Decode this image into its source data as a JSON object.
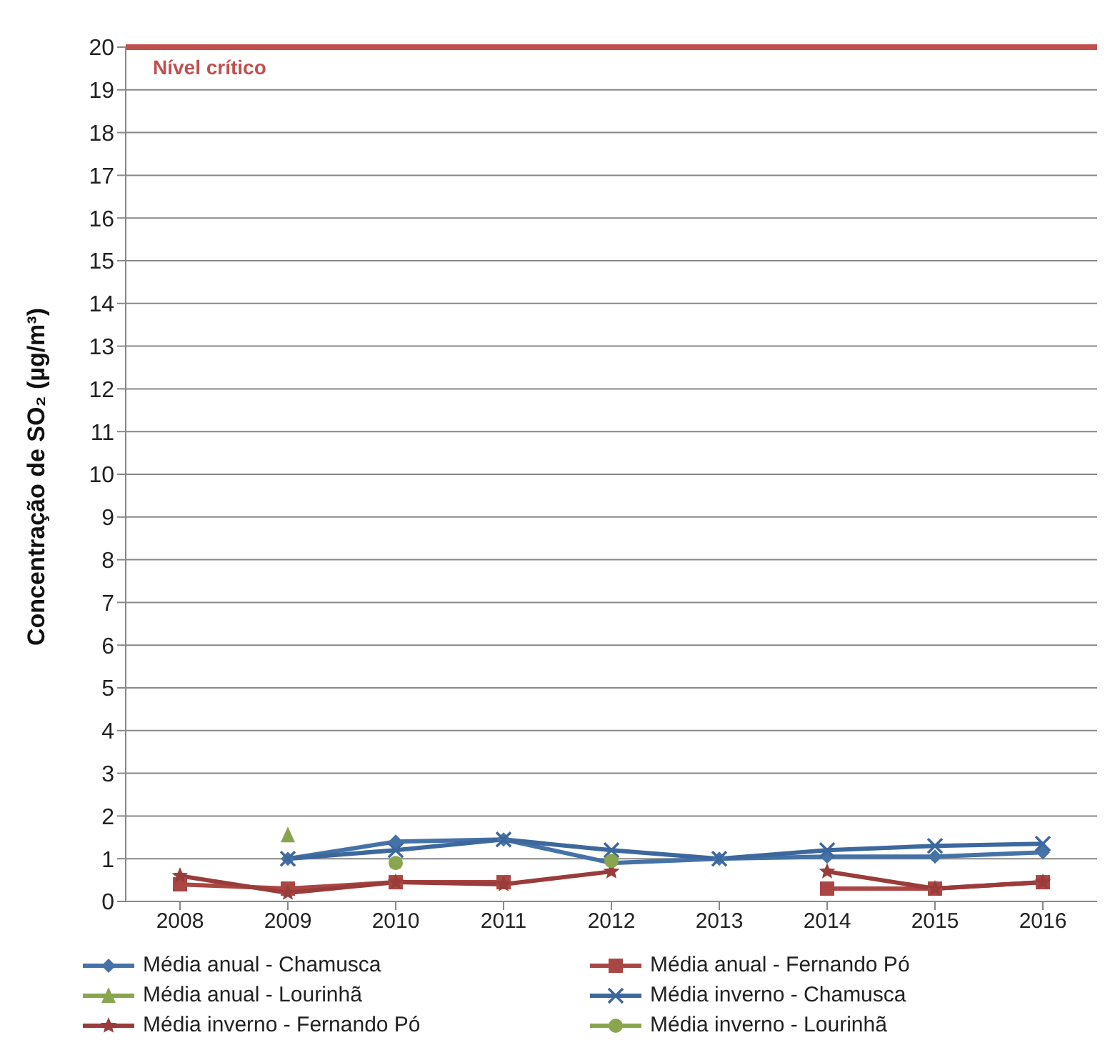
{
  "chart_data": {
    "type": "line",
    "ylabel": "Concentração de SO₂ (µg/m³)",
    "categories": [
      "2008",
      "2009",
      "2010",
      "2011",
      "2012",
      "2013",
      "2014",
      "2015",
      "2016"
    ],
    "series": [
      {
        "name": "Média anual - Chamusca",
        "color": "#4572a7",
        "marker": "diamond",
        "values": [
          null,
          1.0,
          1.4,
          1.45,
          0.9,
          1.0,
          1.05,
          1.05,
          1.15
        ]
      },
      {
        "name": "Média anual - Fernando Pó",
        "color": "#aa4643",
        "marker": "square",
        "values": [
          0.4,
          0.3,
          0.45,
          0.45,
          null,
          null,
          0.3,
          0.3,
          0.45
        ]
      },
      {
        "name": "Média anual - Lourinhã",
        "type": "scatter",
        "color": "#89a54e",
        "marker": "triangle",
        "values": [
          null,
          1.55,
          null,
          null,
          null,
          null,
          null,
          null,
          null
        ]
      },
      {
        "name": "Média inverno - Chamusca",
        "color": "#3d689e",
        "marker": "cross",
        "values": [
          null,
          1.0,
          1.2,
          1.45,
          1.2,
          1.0,
          1.2,
          1.3,
          1.35
        ]
      },
      {
        "name": "Média inverno - Fernando Pó",
        "color": "#9a3c3a",
        "marker": "star",
        "values": [
          0.6,
          0.2,
          0.45,
          0.4,
          0.7,
          null,
          0.7,
          0.3,
          0.45
        ]
      },
      {
        "name": "Média inverno - Lourinhã",
        "type": "scatter",
        "color": "#89a54e",
        "marker": "circle",
        "values": [
          null,
          null,
          0.9,
          null,
          0.95,
          null,
          null,
          null,
          null
        ]
      }
    ],
    "ylim": [
      0,
      20
    ],
    "yticks": [
      0,
      1,
      2,
      3,
      4,
      5,
      6,
      7,
      8,
      9,
      10,
      11,
      12,
      13,
      14,
      15,
      16,
      17,
      18,
      19,
      20
    ],
    "grid": "y",
    "legend": "bottom",
    "ref_lines": [
      {
        "axis": "y",
        "value": 20,
        "label": "Nível crítico",
        "color": "#c0504d"
      }
    ]
  }
}
